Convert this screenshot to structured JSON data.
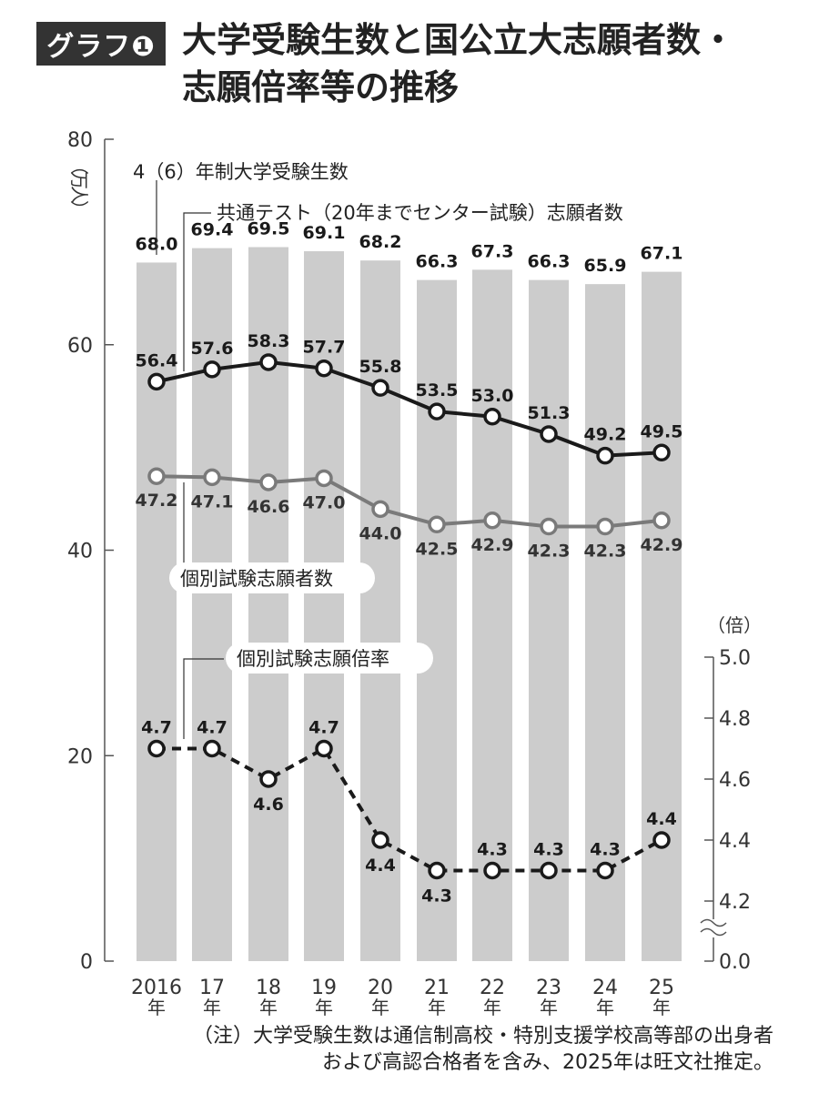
{
  "header": {
    "badge": "グラフ❶",
    "title_line1": "大学受験生数と国公立大志願者数・",
    "title_line2": "志願倍率等の推移"
  },
  "chart_data": {
    "type": "bar",
    "categories": [
      "2016\n年",
      "17\n年",
      "18\n年",
      "19\n年",
      "20\n年",
      "21\n年",
      "22\n年",
      "23\n年",
      "24\n年",
      "25\n年"
    ],
    "left_axis": {
      "unit": "（万人）",
      "ylim": [
        0,
        80
      ],
      "ticks": [
        "0",
        "20",
        "40",
        "60",
        "80"
      ]
    },
    "right_axis": {
      "unit": "（倍）",
      "ticks": [
        "0.0",
        "4.2",
        "4.4",
        "4.6",
        "4.8",
        "5.0"
      ]
    },
    "series": [
      {
        "name": "4（6）年制大学受験生数",
        "type": "bar",
        "axis": "left",
        "values": [
          68.0,
          69.4,
          69.5,
          69.1,
          68.2,
          66.3,
          67.3,
          66.3,
          65.9,
          67.1
        ],
        "labels": [
          "68.0",
          "69.4",
          "69.5",
          "69.1",
          "68.2",
          "66.3",
          "67.3",
          "66.3",
          "65.9",
          "67.1"
        ]
      },
      {
        "name": "共通テスト（20年までセンター試験）志願者数",
        "type": "line",
        "axis": "left",
        "values": [
          56.4,
          57.6,
          58.3,
          57.7,
          55.8,
          53.5,
          53.0,
          51.3,
          49.2,
          49.5
        ],
        "labels": [
          "56.4",
          "57.6",
          "58.3",
          "57.7",
          "55.8",
          "53.5",
          "53.0",
          "51.3",
          "49.2",
          "49.5"
        ]
      },
      {
        "name": "個別試験志願者数",
        "type": "line",
        "axis": "left",
        "values": [
          47.2,
          47.1,
          46.6,
          47.0,
          44.0,
          42.5,
          42.9,
          42.3,
          42.3,
          42.9
        ],
        "labels": [
          "47.2",
          "47.1",
          "46.6",
          "47.0",
          "44.0",
          "42.5",
          "42.9",
          "42.3",
          "42.3",
          "42.9"
        ]
      },
      {
        "name": "個別試験志願倍率",
        "type": "line-dashed",
        "axis": "right",
        "values": [
          4.7,
          4.7,
          4.6,
          4.7,
          4.4,
          4.3,
          4.3,
          4.3,
          4.3,
          4.4
        ],
        "labels": [
          "4.7",
          "4.7",
          "4.6",
          "4.7",
          "4.4",
          "4.3",
          "4.3",
          "4.3",
          "4.3",
          "4.4"
        ]
      }
    ],
    "colors": {
      "bar": "#cccccc",
      "series1": "#1a1a1a",
      "series2": "#7a7a7a",
      "series3": "#1a1a1a"
    }
  },
  "note": {
    "line1": "（注）大学受験生数は通信制高校・特別支援学校高等部の出身者",
    "line2": "および高認合格者を含み、2025年は旺文社推定。"
  }
}
